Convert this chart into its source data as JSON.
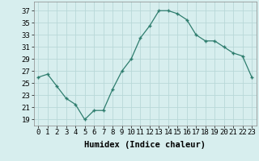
{
  "x": [
    0,
    1,
    2,
    3,
    4,
    5,
    6,
    7,
    8,
    9,
    10,
    11,
    12,
    13,
    14,
    15,
    16,
    17,
    18,
    19,
    20,
    21,
    22,
    23
  ],
  "y": [
    26,
    26.5,
    24.5,
    22.5,
    21.5,
    19,
    20.5,
    20.5,
    24,
    27,
    29,
    32.5,
    34.5,
    37,
    37,
    36.5,
    35.5,
    33,
    32,
    32,
    31,
    30,
    29.5,
    26
  ],
  "line_color": "#2e7d6e",
  "marker": "+",
  "bg_color": "#d7eeee",
  "grid_color": "#b8d8d8",
  "xlabel": "Humidex (Indice chaleur)",
  "ylabel_ticks": [
    19,
    21,
    23,
    25,
    27,
    29,
    31,
    33,
    35,
    37
  ],
  "ylim": [
    18.0,
    38.5
  ],
  "xlim": [
    -0.5,
    23.5
  ],
  "tick_fontsize": 6.5,
  "label_fontsize": 7.5
}
